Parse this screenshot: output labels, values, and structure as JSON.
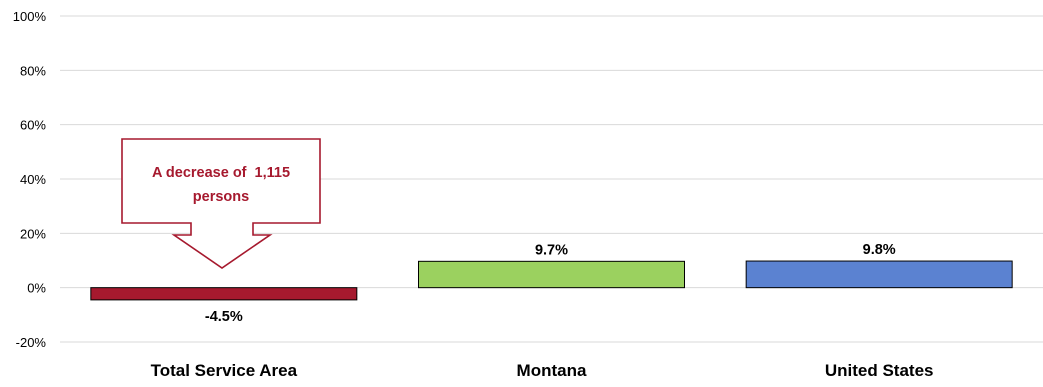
{
  "chart_data": {
    "type": "bar",
    "categories": [
      "Total Service Area",
      "Montana",
      "United States"
    ],
    "values": [
      -4.5,
      9.7,
      9.8
    ],
    "data_labels": [
      "-4.5%",
      "9.7%",
      "9.8%"
    ],
    "title": "",
    "xlabel": "",
    "ylabel": "",
    "ylim": [
      -20,
      100
    ],
    "yticks": [
      -20,
      0,
      20,
      40,
      60,
      80,
      100
    ],
    "ytick_labels": [
      "-20%",
      "0%",
      "20%",
      "40%",
      "60%",
      "80%",
      "100%"
    ],
    "grid": true,
    "legend": "none",
    "bar_colors": [
      "#A6192E",
      "#9BD15F",
      "#5B82D1"
    ],
    "annotation": {
      "text_line1": "A decrease of  1,115",
      "text_line2": "persons",
      "points_to": "Total Service Area",
      "color": "#A6192E"
    }
  }
}
